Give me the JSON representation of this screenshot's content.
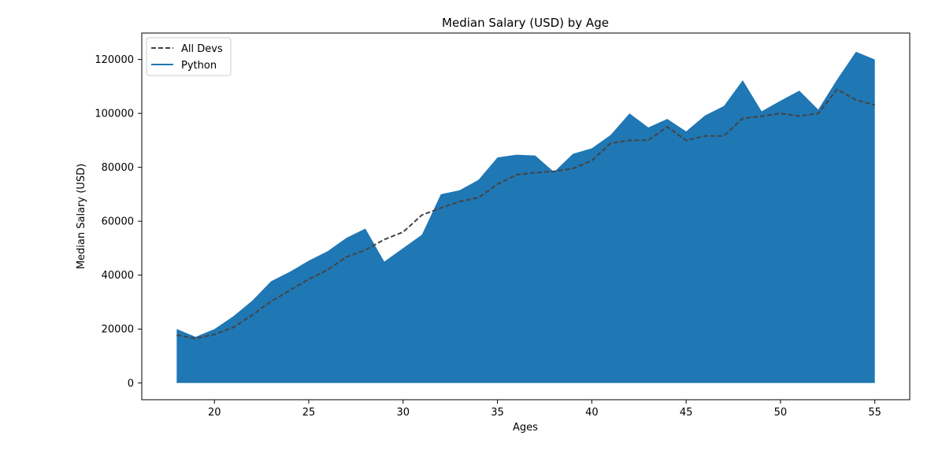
{
  "chart_data": {
    "type": "area",
    "title": "Median Salary (USD) by Age",
    "xlabel": "Ages",
    "ylabel": "Median Salary (USD)",
    "xlim": [
      16.15,
      56.85
    ],
    "ylim": [
      -6200,
      129800
    ],
    "x_ticks": [
      20,
      25,
      30,
      35,
      40,
      45,
      50,
      55
    ],
    "y_ticks": [
      0,
      20000,
      40000,
      60000,
      80000,
      100000,
      120000
    ],
    "grid": false,
    "legend_position": "upper-left",
    "x": [
      18,
      19,
      20,
      21,
      22,
      23,
      24,
      25,
      26,
      27,
      28,
      29,
      30,
      31,
      32,
      33,
      34,
      35,
      36,
      37,
      38,
      39,
      40,
      41,
      42,
      43,
      44,
      45,
      46,
      47,
      48,
      49,
      50,
      51,
      52,
      53,
      54,
      55
    ],
    "series": [
      {
        "name": "All Devs",
        "style": "dashed-line",
        "color": "#444444",
        "values": [
          17784,
          16500,
          18012,
          20628,
          25206,
          30252,
          34368,
          38496,
          42000,
          46752,
          49320,
          53200,
          56000,
          62316,
          64928,
          67317,
          68748,
          73752,
          77232,
          78000,
          78508,
          79536,
          82488,
          88935,
          90000,
          90056,
          95000,
          90000,
          91633,
          91660,
          98150,
          98964,
          100000,
          98988,
          100000,
          108923,
          105000,
          103117
        ]
      },
      {
        "name": "Python",
        "style": "filled-area",
        "color": "#1f77b4",
        "values": [
          20046,
          17100,
          20000,
          24744,
          30500,
          37732,
          41247,
          45372,
          48876,
          53850,
          57287,
          45000,
          50000,
          55000,
          70000,
          71496,
          75370,
          83640,
          84666,
          84392,
          78254,
          85000,
          87038,
          91991,
          100000,
          94796,
          97962,
          93302,
          99240,
          102736,
          112285,
          100771,
          104708,
          108423,
          101407,
          112542,
          122870,
          120000
        ]
      }
    ]
  }
}
